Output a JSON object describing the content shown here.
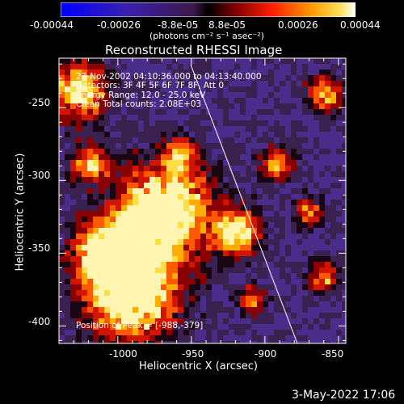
{
  "colorbar": {
    "ticks": [
      "-0.00044",
      "-0.00026",
      "-8.8e-05",
      "8.8e-05",
      "0.00026",
      "0.00044"
    ],
    "unit_label": "(photons cm⁻² s⁻¹ asec⁻²)"
  },
  "plot": {
    "title": "Reconstructed RHESSI Image",
    "xlabel": "Heliocentric X (arcsec)",
    "ylabel": "Heliocentric Y (arcsec)",
    "xticks": [
      "-1000",
      "-950",
      "-900",
      "-850"
    ],
    "yticks": [
      "-250",
      "-300",
      "-350",
      "-400"
    ],
    "info": {
      "time": "27-Nov-2002 04:10:36.000 to 04:13:40.000",
      "detectors": "Detectors: 3F 4F 5F 6F 7F 8F, Att 0",
      "energy": "Energy Range: 12.0 - 25.0 keV",
      "clean": "Clean     Total counts: 2.08E+03"
    },
    "peak": "Position of Peak = [-988,-379]"
  },
  "footer": {
    "date": "3-May-2022 17:06"
  },
  "colors": {
    "background": "#000000",
    "text": "#ffffff"
  }
}
